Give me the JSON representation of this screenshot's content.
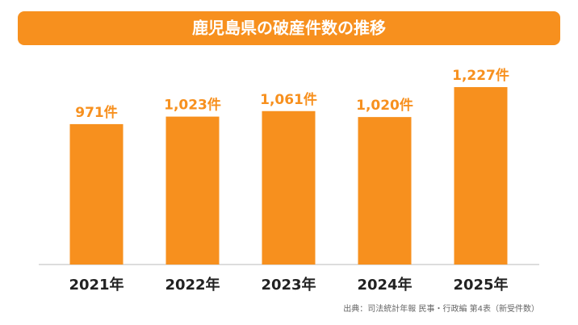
{
  "chart_data": {
    "type": "bar",
    "title": "鹿児島県の破産件数の推移",
    "categories": [
      "2021年",
      "2022年",
      "2023年",
      "2024年",
      "2025年"
    ],
    "values": [
      971,
      1023,
      1061,
      1020,
      1227
    ],
    "value_labels": [
      "971件",
      "1,023件",
      "1,061件",
      "1,020件",
      "1,227件"
    ],
    "color": "#f7901e",
    "ylim": [
      0,
      1400
    ],
    "source": "出典：司法統計年報 民事・行政編 第4表（新受件数）"
  }
}
